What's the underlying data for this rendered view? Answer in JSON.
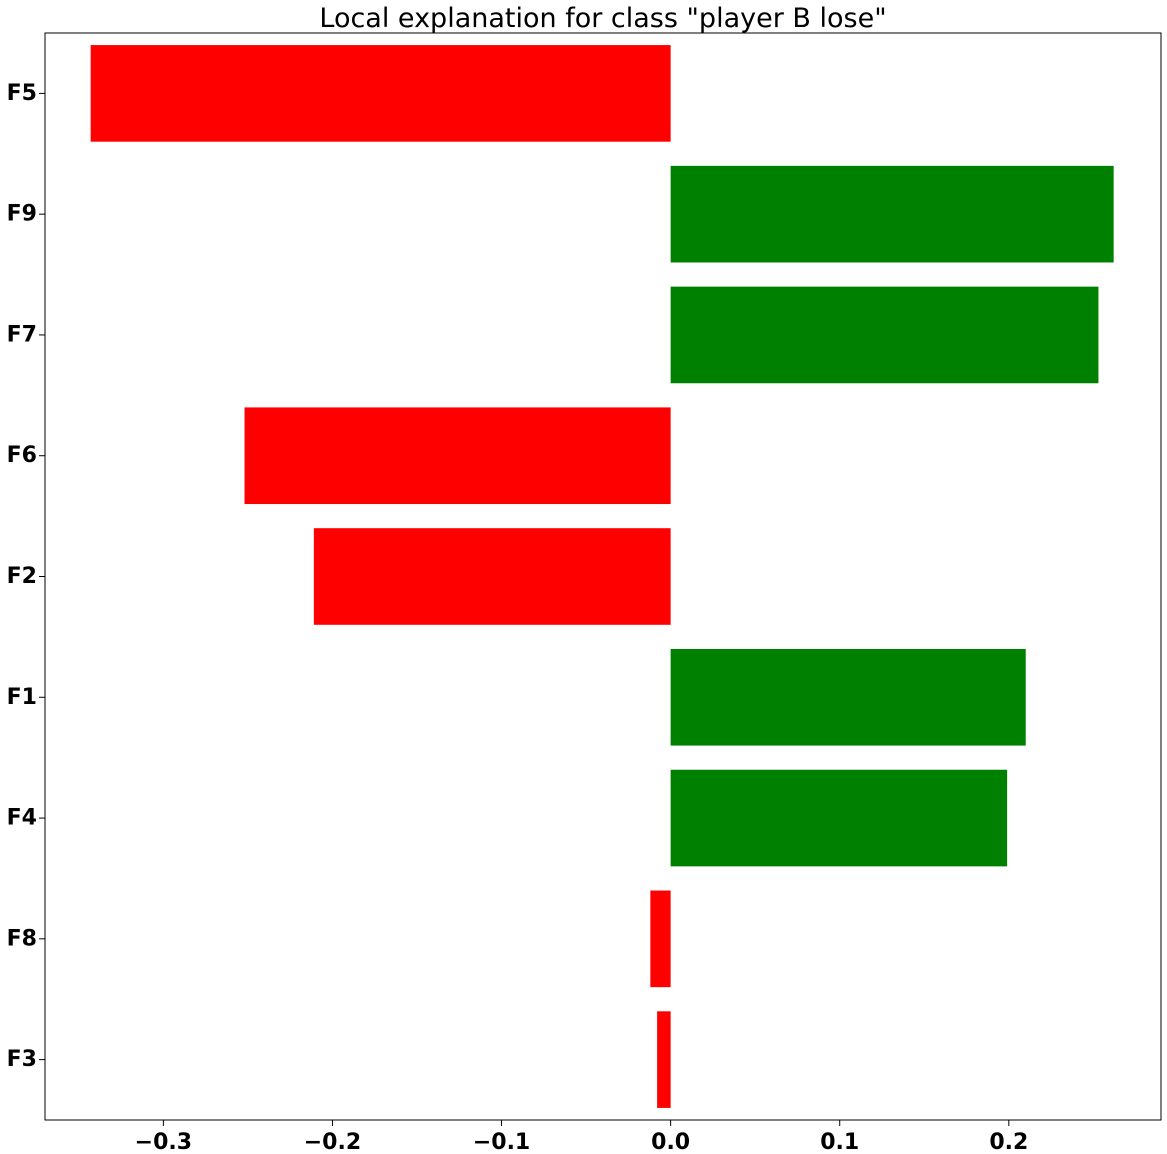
{
  "chart_data": {
    "type": "bar",
    "orientation": "horizontal",
    "title": "Local explanation for class \"player B lose\"",
    "xlabel": "",
    "ylabel": "",
    "categories": [
      "F5",
      "F9",
      "F7",
      "F6",
      "F2",
      "F1",
      "F4",
      "F8",
      "F3"
    ],
    "values": [
      -0.343,
      0.262,
      0.253,
      -0.252,
      -0.211,
      0.21,
      0.199,
      -0.012,
      -0.008
    ],
    "xlim": [
      -0.37,
      0.29
    ],
    "xticks": [
      -0.3,
      -0.2,
      -0.1,
      0.0,
      0.1,
      0.2
    ],
    "xtick_labels": [
      "−0.3",
      "−0.2",
      "−0.1",
      "0.0",
      "0.1",
      "0.2"
    ],
    "positive_color": "#008000",
    "negative_color": "#ff0000",
    "grid": false,
    "legend": "none"
  }
}
